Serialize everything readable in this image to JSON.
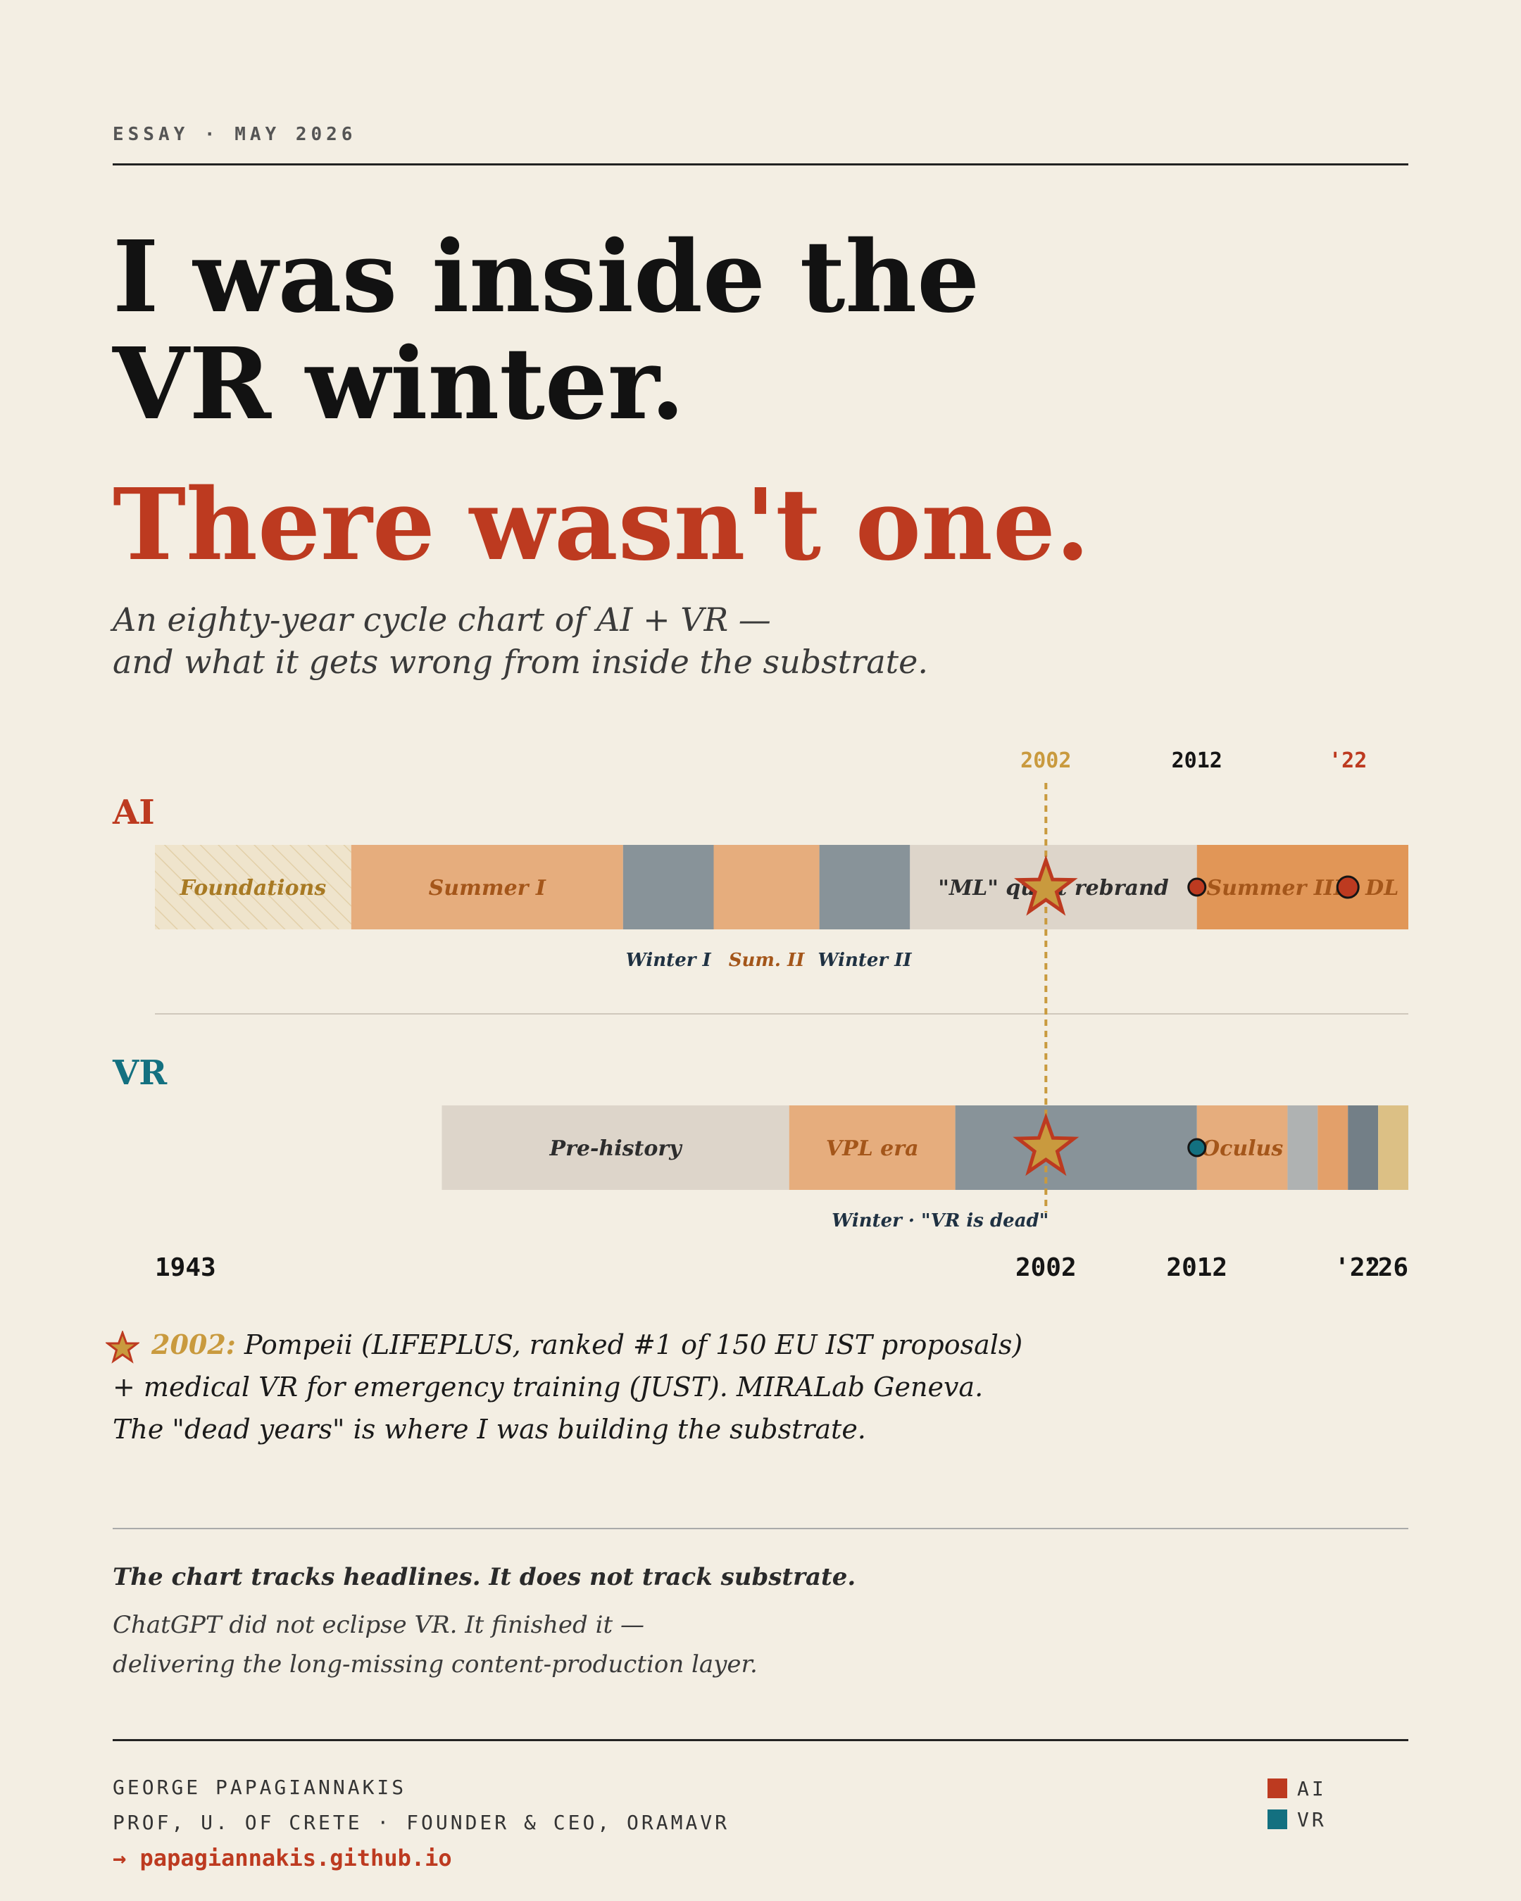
{
  "header": {
    "kicker": "ESSAY · MAY 2026"
  },
  "title": {
    "line1": "I was inside the",
    "line2": "VR winter.",
    "line3": "There wasn't one."
  },
  "subtitle": {
    "line1": "An eighty-year cycle chart of AI + VR —",
    "line2": "and what it gets wrong from inside the substrate."
  },
  "colors": {
    "ai": "#bd3a20",
    "vr": "#137080",
    "star": "#c99a3e",
    "background": "#f3eee3"
  },
  "chart_data": {
    "type": "timeline",
    "x_range": [
      1943,
      2026
    ],
    "top_ticks": [
      {
        "year": 2002,
        "label": "2002",
        "color": "#c99a3e"
      },
      {
        "year": 2012,
        "label": "2012",
        "color": "#151515"
      },
      {
        "year": 2022,
        "label": "'22",
        "color": "#bd3a20"
      }
    ],
    "bottom_ticks": [
      {
        "year": 1943,
        "label": "1943"
      },
      {
        "year": 2002,
        "label": "2002"
      },
      {
        "year": 2012,
        "label": "2012"
      },
      {
        "year": 2022,
        "label": "'22"
      },
      {
        "year": 2026,
        "label": "'26"
      }
    ],
    "highlight_year": 2002,
    "tracks": [
      {
        "name": "AI",
        "segments": [
          {
            "start": 1943,
            "end": 1956,
            "label": "Foundations",
            "kind": "hatched"
          },
          {
            "start": 1956,
            "end": 1974,
            "label": "Summer I",
            "kind": "summer"
          },
          {
            "start": 1974,
            "end": 1980,
            "label": "",
            "kind": "winter"
          },
          {
            "start": 1980,
            "end": 1987,
            "label": "",
            "kind": "summer"
          },
          {
            "start": 1987,
            "end": 1993,
            "label": "",
            "kind": "winter"
          },
          {
            "start": 1993,
            "end": 2012,
            "label": "\"ML\" quiet rebrand",
            "kind": "quiet"
          },
          {
            "start": 2012,
            "end": 2026,
            "label": "Summer III · DL",
            "kind": "hot"
          }
        ],
        "below_labels": [
          {
            "year": 1977,
            "label": "Winter I",
            "kind": "winter"
          },
          {
            "year": 1983.5,
            "label": "Sum. II",
            "kind": "summer"
          },
          {
            "year": 1990,
            "label": "Winter II",
            "kind": "winter"
          }
        ],
        "markers": [
          2012,
          2022
        ]
      },
      {
        "name": "VR",
        "segments": [
          {
            "start": 1962,
            "end": 1985,
            "label": "Pre-history",
            "kind": "quiet"
          },
          {
            "start": 1985,
            "end": 1996,
            "label": "VPL era",
            "kind": "summer"
          },
          {
            "start": 1996,
            "end": 2012,
            "label": "",
            "kind": "winter"
          },
          {
            "start": 2012,
            "end": 2018,
            "label": "Oculus",
            "kind": "summer"
          },
          {
            "start": 2018,
            "end": 2020,
            "label": "",
            "kind": "light-winter"
          },
          {
            "start": 2020,
            "end": 2022,
            "label": "",
            "kind": "summer-dark"
          },
          {
            "start": 2022,
            "end": 2024,
            "label": "",
            "kind": "winter-dark"
          },
          {
            "start": 2024,
            "end": 2026,
            "label": "",
            "kind": "gold"
          }
        ],
        "below_labels": [
          {
            "year": 1995,
            "label": "Winter · \"VR is dead\"",
            "kind": "winter"
          }
        ],
        "markers": [
          2012
        ]
      }
    ]
  },
  "note": {
    "year": "2002:",
    "line1": "Pompeii (LIFEPLUS, ranked #1 of 150 EU IST proposals)",
    "line2": "+ medical VR for emergency training (JUST). MIRALab Geneva.",
    "line3": "The \"dead years\" is where I was building the substrate."
  },
  "quote": {
    "bold": "The chart tracks headlines. It does not track substrate.",
    "line1": "ChatGPT did not eclipse VR. It finished it —",
    "line2": "delivering the long-missing content-production layer."
  },
  "footer": {
    "name": "GEORGE PAPAGIANNAKIS",
    "role": "PROF, U. OF CRETE · FOUNDER & CEO, ORAMAVR",
    "link": "→ papagiannakis.github.io",
    "legend": [
      {
        "label": "AI",
        "color": "#bd3a20"
      },
      {
        "label": "VR",
        "color": "#137080"
      }
    ]
  }
}
